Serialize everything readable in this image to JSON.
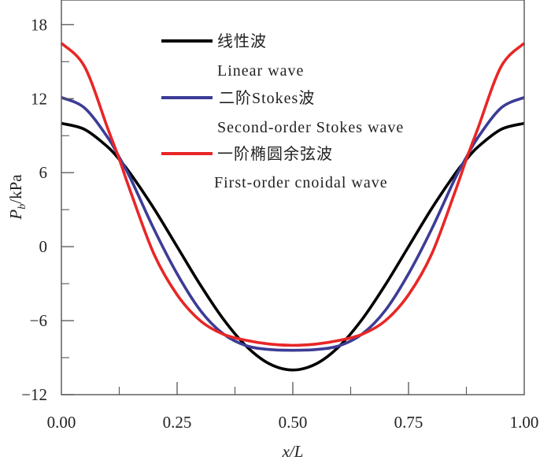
{
  "chart_data": {
    "type": "line",
    "title": "",
    "xlabel": "x/L",
    "ylabel": "Pb/kPa",
    "ylabel_main": "P",
    "ylabel_sub": "b",
    "ylabel_unit": "/kPa",
    "xlim": [
      0,
      1
    ],
    "ylim": [
      -12,
      20
    ],
    "xticks": [
      0,
      0.25,
      0.5,
      0.75,
      1.0
    ],
    "xtick_labels": [
      "0.00",
      "0.25",
      "0.50",
      "0.75",
      "1.00"
    ],
    "yticks": [
      -12,
      -6,
      0,
      6,
      12,
      18
    ],
    "ytick_labels": [
      "−12",
      "−6",
      "0",
      "6",
      "12",
      "18"
    ],
    "grid": false,
    "legend_position": "top-center",
    "x": [
      0,
      0.05,
      0.1,
      0.125,
      0.15,
      0.2,
      0.25,
      0.3,
      0.35,
      0.4,
      0.45,
      0.5,
      0.55,
      0.6,
      0.65,
      0.7,
      0.75,
      0.8,
      0.85,
      0.875,
      0.9,
      0.95,
      1.0
    ],
    "series": [
      {
        "name": "线性波",
        "name_en": "Linear wave",
        "color": "#000000",
        "values": [
          10.0,
          9.51,
          8.09,
          7.07,
          5.88,
          3.09,
          0.0,
          -3.09,
          -5.88,
          -8.09,
          -9.51,
          -10.0,
          -9.51,
          -8.09,
          -5.88,
          -3.09,
          0.0,
          3.09,
          5.88,
          7.07,
          8.09,
          9.51,
          10.0
        ]
      },
      {
        "name": "二阶Stokes波",
        "name_en": "Second-order Stokes wave",
        "color": "#3c3c96",
        "values": [
          12.1,
          11.25,
          8.86,
          7.25,
          5.49,
          1.42,
          -2.2,
          -5.16,
          -7.08,
          -8.04,
          -8.34,
          -8.4,
          -8.34,
          -8.04,
          -7.08,
          -5.16,
          -2.2,
          1.42,
          5.49,
          7.25,
          8.86,
          11.25,
          12.1
        ]
      },
      {
        "name": "一阶椭圆余弦波",
        "name_en": "First-order cnoidal wave",
        "color": "#e82626",
        "values": [
          16.5,
          14.6,
          9.6,
          7.1,
          4.4,
          -0.6,
          -3.9,
          -6.0,
          -7.1,
          -7.6,
          -7.9,
          -8.0,
          -7.9,
          -7.6,
          -7.1,
          -6.0,
          -3.9,
          -0.6,
          4.4,
          7.1,
          9.6,
          14.6,
          16.5
        ]
      }
    ]
  }
}
